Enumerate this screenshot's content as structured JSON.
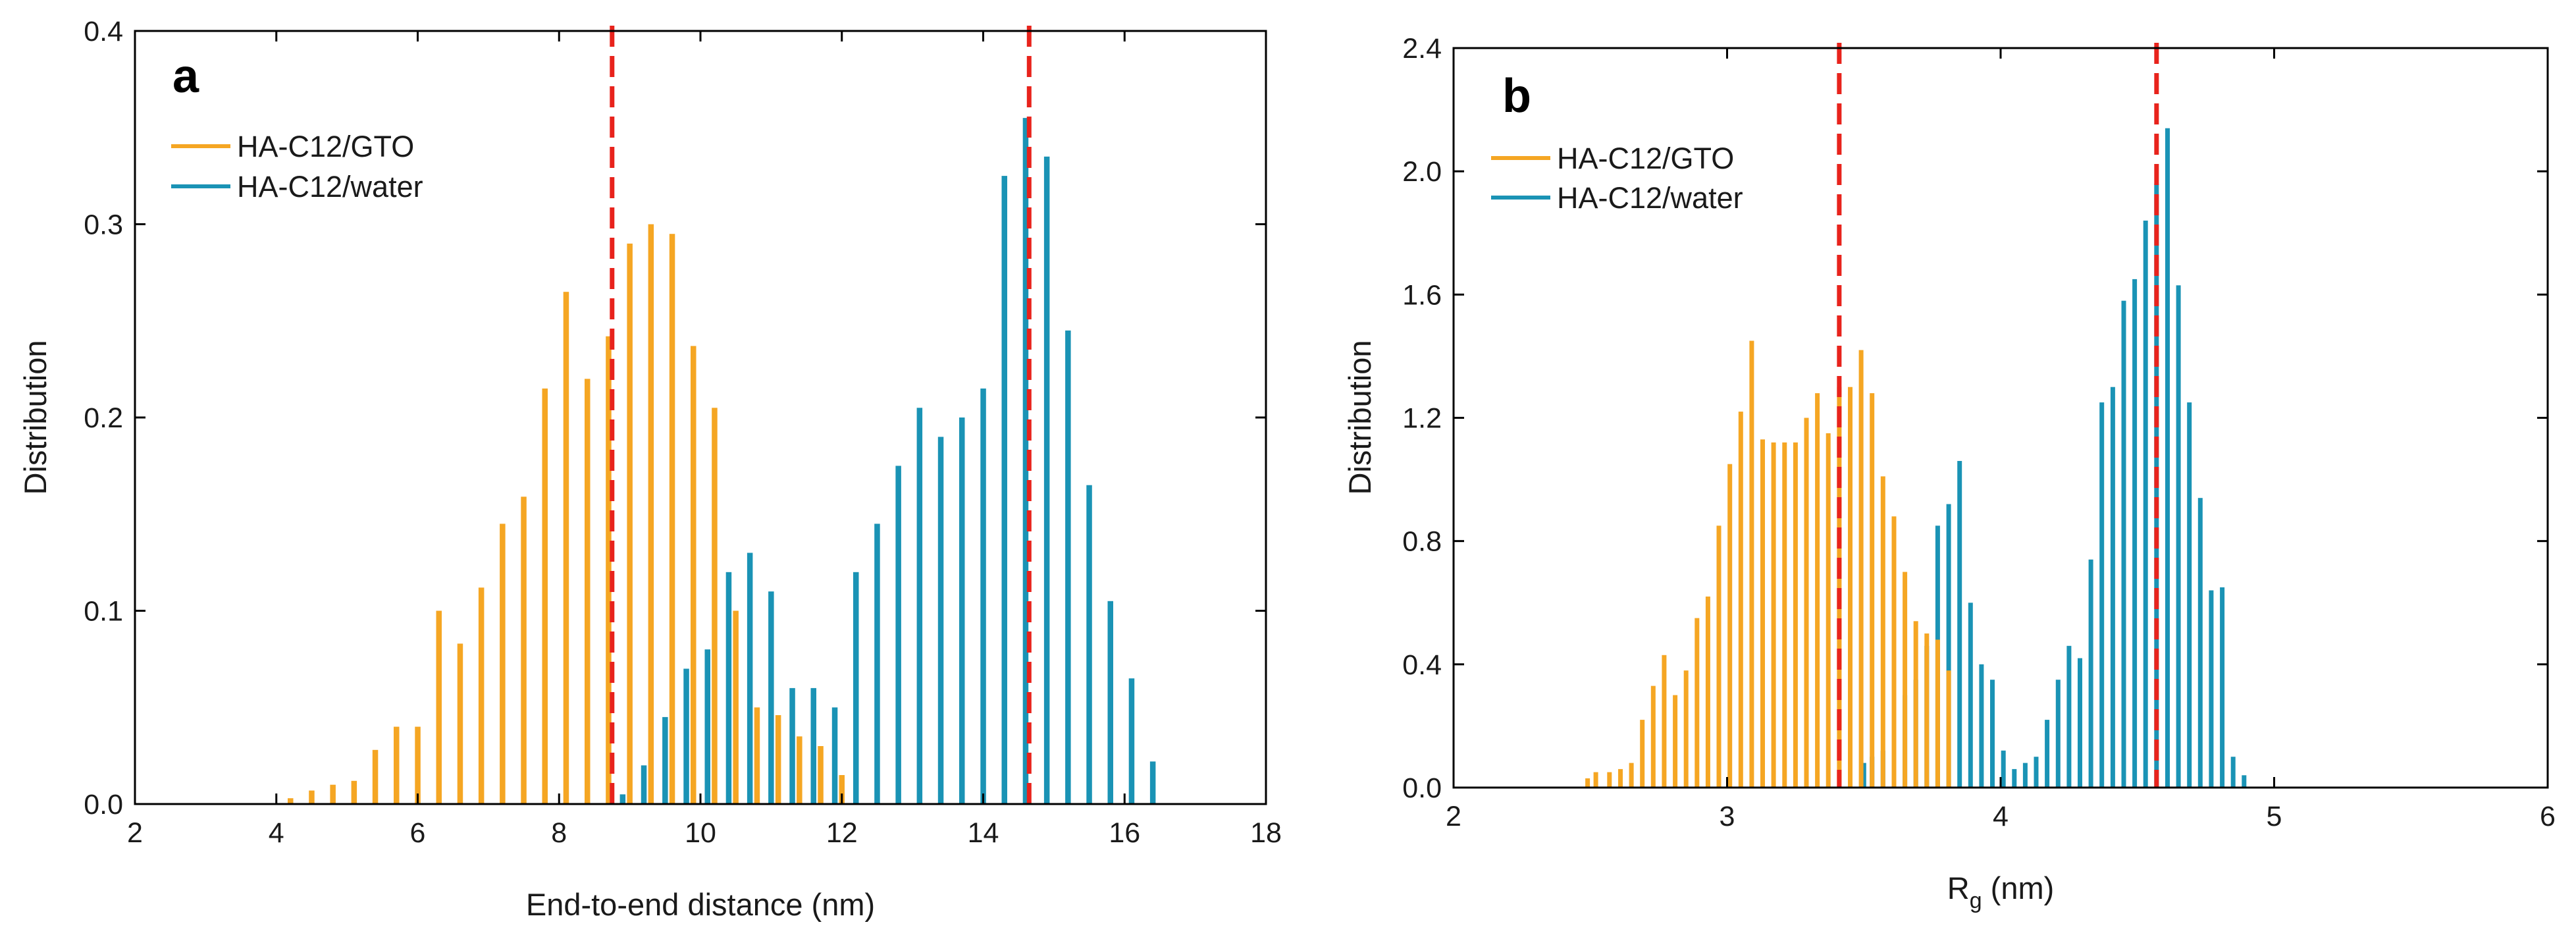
{
  "chart_data": [
    {
      "type": "bar",
      "panel_label": "a",
      "xlabel": "End-to-end distance (nm)",
      "ylabel": "Distribution",
      "xlim": [
        2,
        18
      ],
      "ylim": [
        0,
        0.4
      ],
      "xticks": [
        2,
        4,
        6,
        8,
        10,
        12,
        14,
        16,
        18
      ],
      "yticks": [
        0.0,
        0.1,
        0.2,
        0.3,
        0.4
      ],
      "ytick_labels": [
        "0.0",
        "0.1",
        "0.2",
        "0.3",
        "0.4"
      ],
      "legend_position": "top-left",
      "reference_lines": [
        8.75,
        14.65
      ],
      "series": [
        {
          "name": "HA-C12/GTO",
          "color": "#F5A623",
          "x": [
            4.2,
            4.5,
            4.8,
            5.1,
            5.4,
            5.7,
            6.0,
            6.3,
            6.6,
            6.9,
            7.2,
            7.5,
            7.8,
            8.1,
            8.4,
            8.7,
            9.0,
            9.3,
            9.6,
            9.9,
            10.2,
            10.5,
            10.8,
            11.1,
            11.4,
            11.7,
            12.0
          ],
          "values": [
            0.003,
            0.007,
            0.01,
            0.012,
            0.028,
            0.04,
            0.04,
            0.1,
            0.083,
            0.112,
            0.145,
            0.159,
            0.215,
            0.265,
            0.22,
            0.242,
            0.29,
            0.3,
            0.295,
            0.237,
            0.205,
            0.1,
            0.05,
            0.046,
            0.035,
            0.03,
            0.015
          ]
        },
        {
          "name": "HA-C12/water",
          "color": "#1A93B5",
          "x": [
            8.9,
            9.2,
            9.5,
            9.8,
            10.1,
            10.4,
            10.7,
            11.0,
            11.3,
            11.6,
            11.9,
            12.2,
            12.5,
            12.8,
            13.1,
            13.4,
            13.7,
            14.0,
            14.3,
            14.6,
            14.9,
            15.2,
            15.5,
            15.8,
            16.1,
            16.4
          ],
          "values": [
            0.005,
            0.02,
            0.045,
            0.07,
            0.08,
            0.12,
            0.13,
            0.11,
            0.06,
            0.06,
            0.05,
            0.12,
            0.145,
            0.175,
            0.205,
            0.19,
            0.2,
            0.215,
            0.325,
            0.355,
            0.335,
            0.245,
            0.165,
            0.105,
            0.065,
            0.022
          ]
        }
      ]
    },
    {
      "type": "bar",
      "panel_label": "b",
      "xlabel": "R",
      "xlabel_subscript": "g",
      "xlabel_suffix": " (nm)",
      "ylabel": "Distribution",
      "xlim": [
        2,
        6
      ],
      "ylim": [
        0,
        2.4
      ],
      "xticks": [
        2,
        3,
        4,
        5,
        6
      ],
      "yticks": [
        0.0,
        0.4,
        0.8,
        1.2,
        1.6,
        2.0,
        2.4
      ],
      "ytick_labels": [
        "0.0",
        "0.4",
        "0.8",
        "1.2",
        "1.6",
        "2.0",
        "2.4"
      ],
      "legend_position": "top-left",
      "reference_lines": [
        3.41,
        4.57
      ],
      "series": [
        {
          "name": "HA-C12/GTO",
          "color": "#F5A623",
          "x": [
            2.49,
            2.52,
            2.57,
            2.61,
            2.65,
            2.69,
            2.73,
            2.77,
            2.81,
            2.85,
            2.89,
            2.93,
            2.97,
            3.01,
            3.05,
            3.09,
            3.13,
            3.17,
            3.21,
            3.25,
            3.29,
            3.33,
            3.37,
            3.41,
            3.45,
            3.49,
            3.53,
            3.57,
            3.61,
            3.65,
            3.69,
            3.73,
            3.77,
            3.81
          ],
          "values": [
            0.03,
            0.05,
            0.05,
            0.06,
            0.08,
            0.22,
            0.33,
            0.43,
            0.3,
            0.38,
            0.55,
            0.62,
            0.85,
            1.05,
            1.22,
            1.45,
            1.13,
            1.12,
            1.12,
            1.12,
            1.2,
            1.28,
            1.15,
            1.3,
            1.3,
            1.42,
            1.28,
            1.01,
            0.88,
            0.7,
            0.54,
            0.5,
            0.48,
            0.38
          ]
        },
        {
          "name": "HA-C12/water",
          "color": "#1A93B5",
          "x": [
            3.5,
            3.53,
            3.57,
            3.61,
            3.65,
            3.69,
            3.73,
            3.77,
            3.81,
            3.85,
            3.89,
            3.93,
            3.97,
            4.01,
            4.05,
            4.09,
            4.13,
            4.17,
            4.21,
            4.25,
            4.29,
            4.33,
            4.37,
            4.41,
            4.45,
            4.49,
            4.53,
            4.57,
            4.61,
            4.65,
            4.69,
            4.73,
            4.77,
            4.81,
            4.85,
            4.89
          ],
          "values": [
            0.08,
            0.1,
            0.12,
            0.16,
            0.3,
            0.35,
            0.46,
            0.85,
            0.92,
            1.06,
            0.6,
            0.4,
            0.35,
            0.12,
            0.06,
            0.08,
            0.1,
            0.22,
            0.35,
            0.46,
            0.42,
            0.74,
            1.25,
            1.3,
            1.58,
            1.65,
            1.84,
            1.96,
            2.14,
            1.63,
            1.25,
            0.94,
            0.64,
            0.65,
            0.1,
            0.04
          ]
        }
      ]
    }
  ]
}
